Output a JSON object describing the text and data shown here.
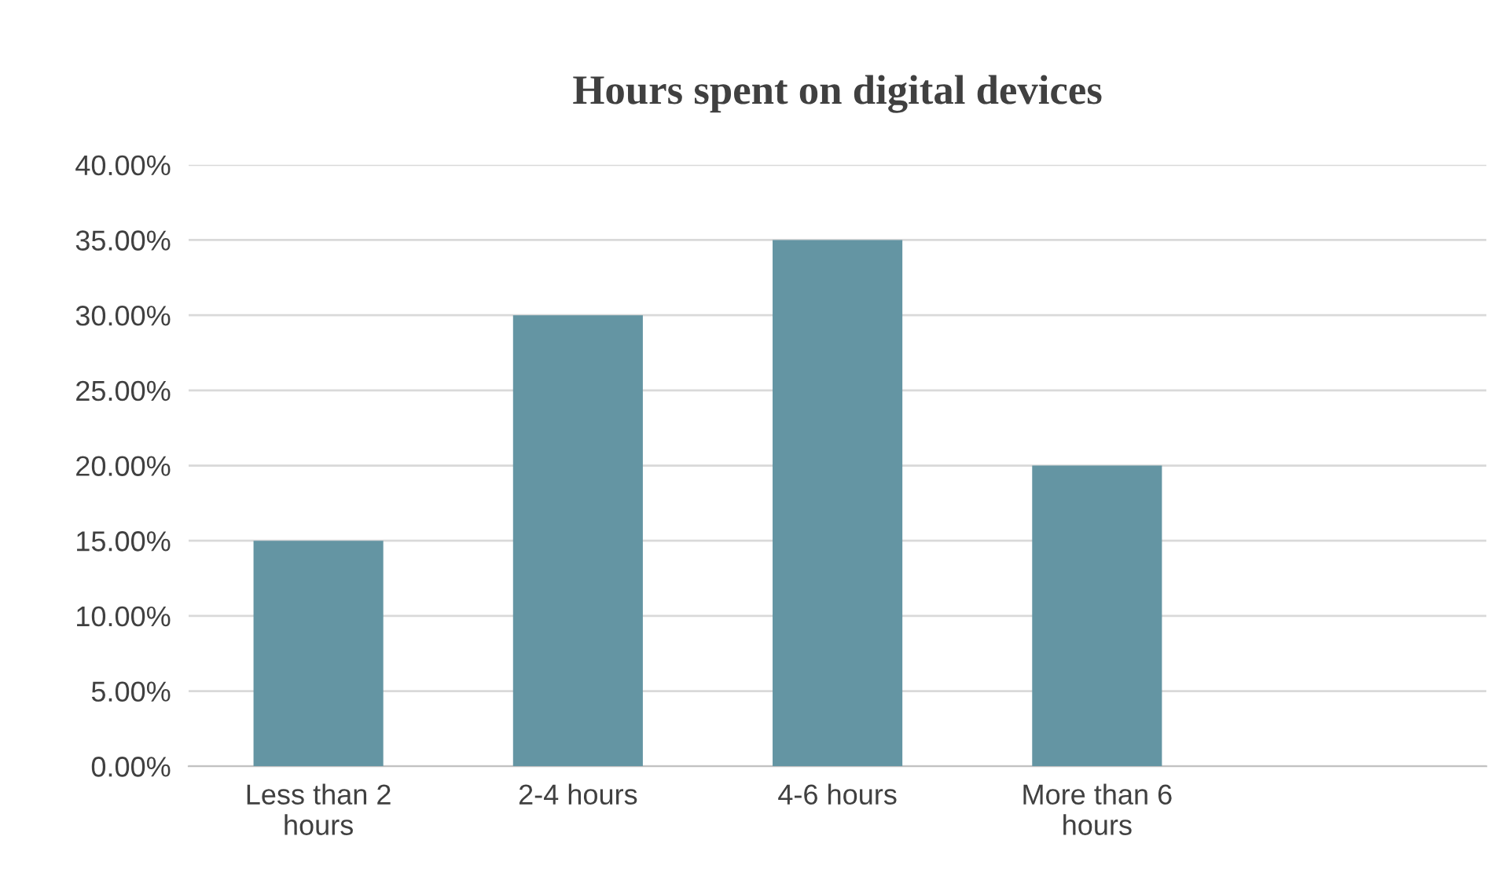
{
  "chart_data": {
    "type": "bar",
    "title": "Hours spent on digital devices",
    "categories": [
      "Less than 2 hours",
      "2-4 hours",
      "4-6 hours",
      "More than 6 hours",
      null
    ],
    "values": [
      15,
      30,
      35,
      20,
      null
    ],
    "color": "#6495a3",
    "ylim": [
      0,
      40
    ],
    "yticks": [
      {
        "value": 0,
        "label": "0.00%"
      },
      {
        "value": 5,
        "label": "5.00%"
      },
      {
        "value": 10,
        "label": "10.00%"
      },
      {
        "value": 15,
        "label": "15.00%"
      },
      {
        "value": 20,
        "label": "20.00%"
      },
      {
        "value": 25,
        "label": "25.00%"
      },
      {
        "value": 30,
        "label": "30.00%"
      },
      {
        "value": 35,
        "label": "35.00%"
      },
      {
        "value": 40,
        "label": "40.00%"
      }
    ],
    "grid": "y"
  }
}
